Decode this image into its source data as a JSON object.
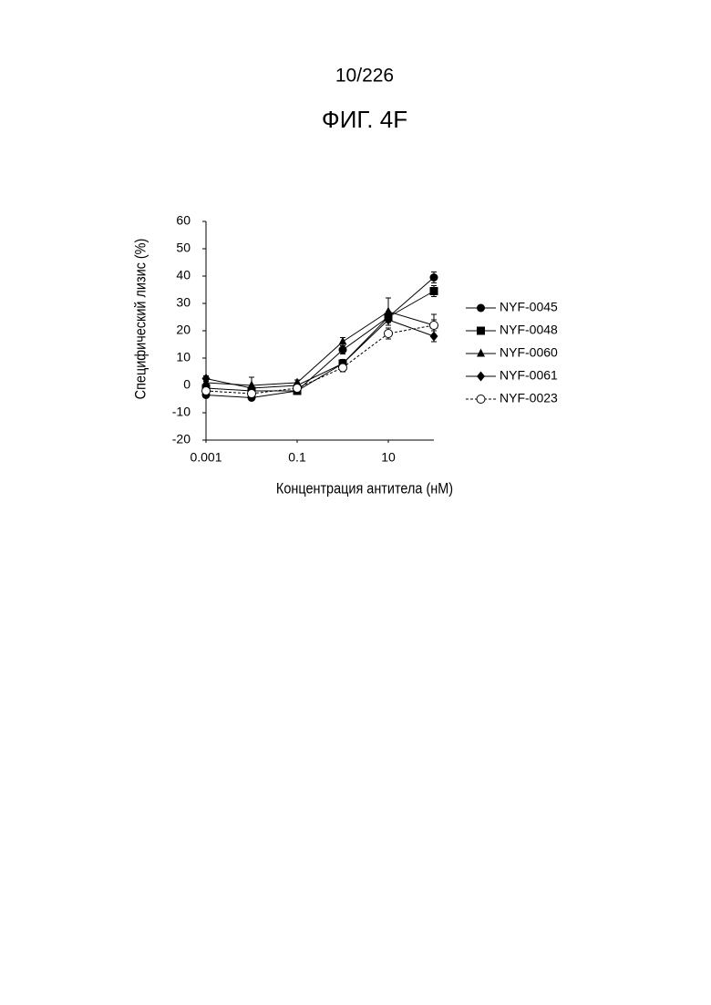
{
  "page_number": "10/226",
  "figure_label": "ФИГ. 4F",
  "chart_data": {
    "type": "line",
    "x_label": "Концентрация антитела (нМ)",
    "y_label": "Специфический лизис (%)",
    "x": [
      0.001,
      0.01,
      0.1,
      1,
      10,
      100
    ],
    "xscale": "log",
    "xlim": [
      0.001,
      100
    ],
    "xticks": [
      0.001,
      0.1,
      10
    ],
    "ylim": [
      -20,
      60
    ],
    "yticks": [
      -20,
      -10,
      0,
      10,
      20,
      30,
      40,
      50,
      60
    ],
    "legend": "right",
    "series": [
      {
        "name": "NYF-0045",
        "color": "#000000",
        "marker": "circle",
        "linestyle": "solid",
        "values": [
          -3.5,
          -4.5,
          -2,
          13,
          25,
          39.5
        ],
        "errors": [
          1,
          1,
          1,
          1.5,
          2,
          2
        ]
      },
      {
        "name": "NYF-0048",
        "color": "#000000",
        "marker": "square",
        "linestyle": "solid",
        "values": [
          -1,
          -2,
          -2,
          8,
          25,
          34.5
        ],
        "errors": [
          1,
          1,
          1,
          1.5,
          2,
          2
        ]
      },
      {
        "name": "NYF-0060",
        "color": "#000000",
        "marker": "triangle",
        "linestyle": "solid",
        "values": [
          1,
          0,
          1,
          16,
          27,
          22
        ],
        "errors": [
          1,
          3,
          1,
          1.5,
          5,
          2
        ]
      },
      {
        "name": "NYF-0061",
        "color": "#000000",
        "marker": "diamond",
        "linestyle": "solid",
        "values": [
          2.5,
          -1,
          0,
          8,
          24,
          18
        ],
        "errors": [
          1,
          1,
          1,
          1.5,
          2,
          2
        ]
      },
      {
        "name": "NYF-0023",
        "color": "#000000",
        "marker": "open-circle",
        "linestyle": "dashed",
        "values": [
          -2,
          -3,
          -1,
          6.5,
          19,
          22
        ],
        "errors": [
          1,
          1,
          1,
          1.5,
          2,
          4
        ]
      }
    ]
  }
}
